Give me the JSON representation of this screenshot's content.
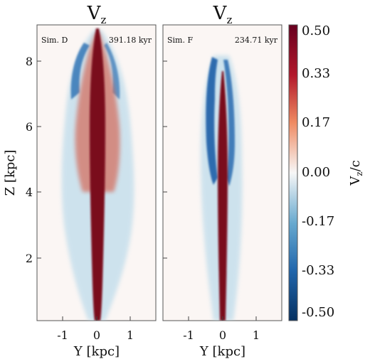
{
  "chart_data": [
    {
      "type": "heatmap",
      "title": "V",
      "title_subscript": "z",
      "sim_label": "Sim. D",
      "time_label": "391.18 kyr",
      "xlabel": "Y [kpc]",
      "ylabel": "Z [kpc]",
      "xlim": [
        -1.75,
        1.75
      ],
      "ylim": [
        0,
        9
      ],
      "xticks": [
        "-1",
        "0",
        "1"
      ],
      "yticks": [
        "2",
        "4",
        "6",
        "8"
      ],
      "features": {
        "jet_length_kpc": 8.9,
        "jet_max_halfwidth_kpc": 0.3,
        "cocoon_halfwidth_kpc": 1.3,
        "backflow_halfwidth_kpc": 1.2
      }
    },
    {
      "type": "heatmap",
      "title": "V",
      "title_subscript": "z",
      "sim_label": "Sim. F",
      "time_label": "234.71 kyr",
      "xlabel": "Y [kpc]",
      "ylabel": "",
      "xlim": [
        -1.75,
        1.75
      ],
      "ylim": [
        0,
        9
      ],
      "xticks": [
        "-1",
        "0",
        "1"
      ],
      "yticks": [],
      "features": {
        "jet_length_kpc": 7.7,
        "jet_max_halfwidth_kpc": 0.15,
        "cocoon_halfwidth_kpc": 0.55,
        "backflow_halfwidth_kpc": 0.5
      }
    }
  ],
  "colorbar": {
    "label": "V",
    "label_subscript": "z",
    "label_suffix": "/c",
    "ticks": [
      "0.50",
      "0.33",
      "0.17",
      "0.00",
      "-0.17",
      "-0.33",
      "-0.50"
    ],
    "range": [
      -0.5,
      0.5
    ],
    "colors": {
      "max": "#67001f",
      "high": "#b2182b",
      "mid_high": "#ef8a62",
      "zero": "#f7f7f7",
      "mid_low": "#67a9cf",
      "low": "#2166ac",
      "min": "#053061"
    }
  }
}
